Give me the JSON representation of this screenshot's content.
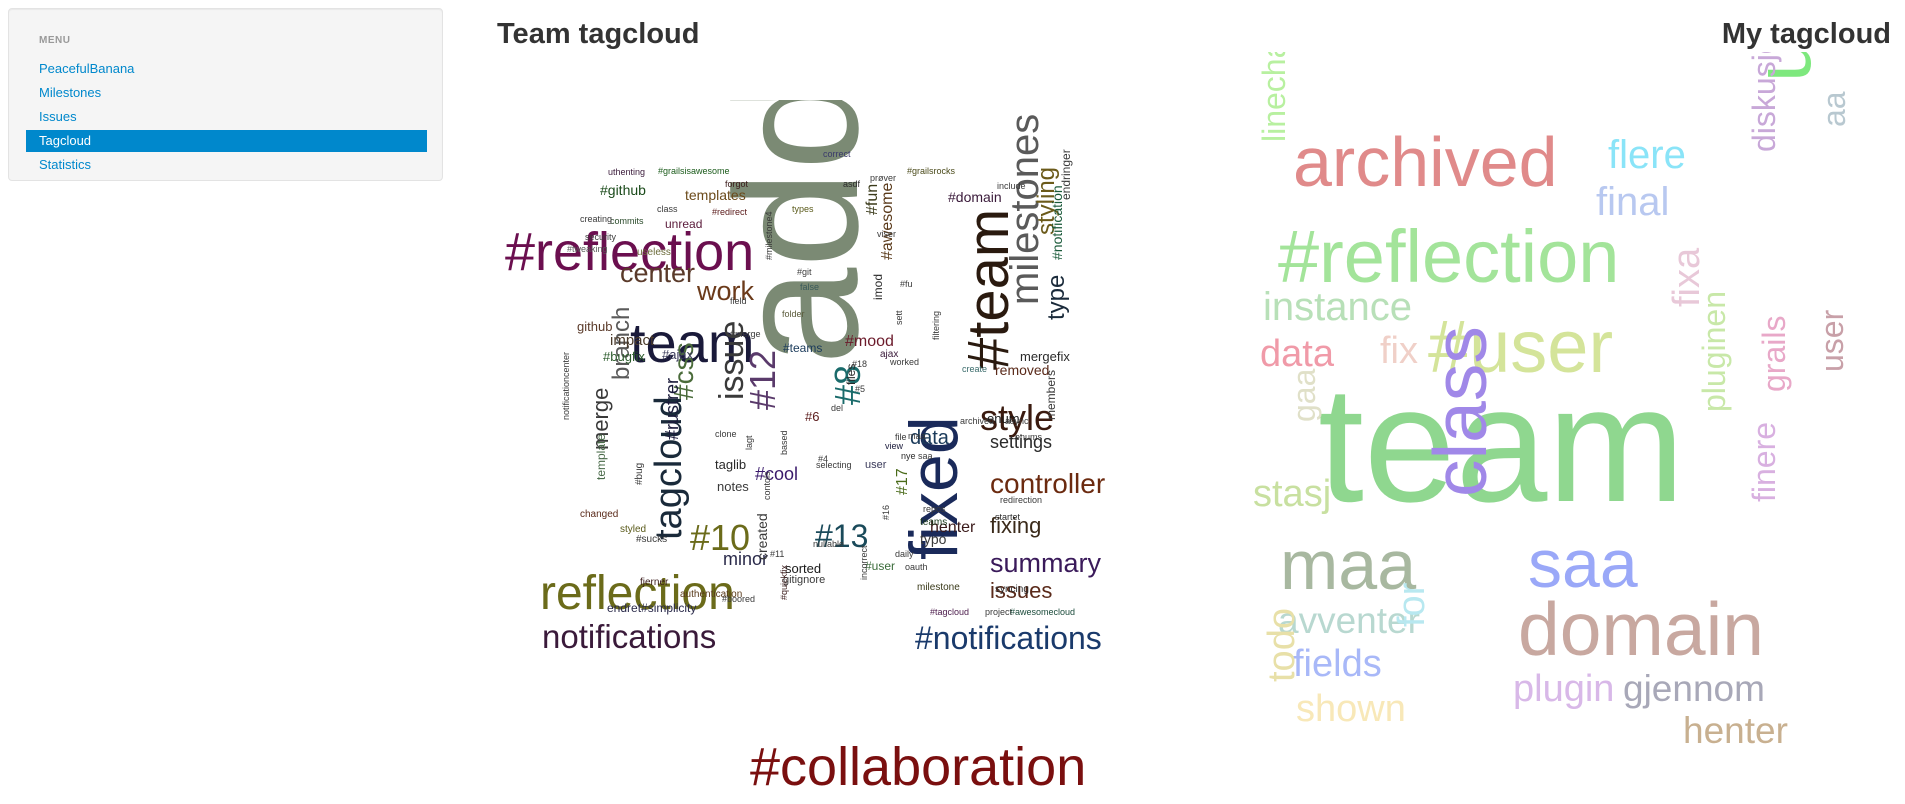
{
  "menu": {
    "header": "MENU",
    "items": [
      {
        "label": "PeacefulBanana",
        "active": false
      },
      {
        "label": "Milestones",
        "active": false
      },
      {
        "label": "Issues",
        "active": false
      },
      {
        "label": "Tagcloud",
        "active": true
      },
      {
        "label": "Statistics",
        "active": false
      }
    ]
  },
  "team_cloud": {
    "title": "Team tagcloud",
    "words": [
      {
        "text": "added",
        "color": "#7b8a74",
        "rotate": true
      },
      {
        "text": "#reflection",
        "color": "#6b0f4f",
        "rotate": false
      },
      {
        "text": "#collaboration",
        "color": "#7a0f0f",
        "rotate": false
      },
      {
        "text": "fixed",
        "color": "#1a2a5a",
        "rotate": true
      },
      {
        "text": "#team",
        "color": "#2a1a0f",
        "rotate": true
      },
      {
        "text": "team",
        "color": "#1a1a3a",
        "rotate": false
      },
      {
        "text": "reflection",
        "color": "#6b6b1a",
        "rotate": false
      },
      {
        "text": "notifications",
        "color": "#3a1a3a",
        "rotate": false
      },
      {
        "text": "#notifications",
        "color": "#1a3a6b",
        "rotate": false
      },
      {
        "text": "milestones",
        "color": "#5a5a5a",
        "rotate": true
      },
      {
        "text": "tagcloud",
        "color": "#1a2a3a",
        "rotate": true
      },
      {
        "text": "style",
        "color": "#3a1a0f",
        "rotate": false
      },
      {
        "text": "controller",
        "color": "#6b2a0f",
        "rotate": false
      },
      {
        "text": "summary",
        "color": "#3a1a5a",
        "rotate": false
      },
      {
        "text": "center",
        "color": "#5a3a2a",
        "rotate": false
      },
      {
        "text": "work",
        "color": "#6b3a1a",
        "rotate": false
      },
      {
        "text": "issue",
        "color": "#3a3a3a",
        "rotate": true
      },
      {
        "text": "#12",
        "color": "#5a3a6b",
        "rotate": true
      },
      {
        "text": "#10",
        "color": "#6b6b1a",
        "rotate": false
      },
      {
        "text": "#13",
        "color": "#1a4a5a",
        "rotate": false
      },
      {
        "text": "#8",
        "color": "#1a6b6b",
        "rotate": true
      },
      {
        "text": "#css",
        "color": "#4a6b3a",
        "rotate": true
      },
      {
        "text": "branch",
        "color": "#5a5a5a",
        "rotate": true
      },
      {
        "text": "merge",
        "color": "#3a3a3a",
        "rotate": true
      },
      {
        "text": "type",
        "color": "#1a2a3a",
        "rotate": true
      },
      {
        "text": "styling",
        "color": "#6b5a1a",
        "rotate": true
      },
      {
        "text": "settings",
        "color": "#2a2a2a",
        "rotate": false
      },
      {
        "text": "fixing",
        "color": "#3a2a1a",
        "rotate": false
      },
      {
        "text": "issues",
        "color": "#5a2a1a",
        "rotate": false
      },
      {
        "text": "data",
        "color": "#1a3a5a",
        "rotate": false
      },
      {
        "text": "minor",
        "color": "#2a2a4a",
        "rotate": false
      },
      {
        "text": "#cool",
        "color": "#3a1a6b",
        "rotate": false
      },
      {
        "text": "#rustrer",
        "color": "#1a1a3a",
        "rotate": true
      },
      {
        "text": "#mood",
        "color": "#6b1a2a",
        "rotate": false
      },
      {
        "text": "#fun",
        "color": "#3a3a1a",
        "rotate": true
      },
      {
        "text": "#awesome",
        "color": "#5a3a1a",
        "rotate": true
      },
      {
        "text": "#17",
        "color": "#4a6b1a",
        "rotate": true
      },
      {
        "text": "#github",
        "color": "#1a4a1a",
        "rotate": false
      },
      {
        "text": "templates",
        "color": "#6b4a1a",
        "rotate": false
      },
      {
        "text": "#domain",
        "color": "#3a1a3a",
        "rotate": false
      },
      {
        "text": "#notification",
        "color": "#1a5a3a",
        "rotate": true
      },
      {
        "text": "endringer",
        "color": "#3a3a3a",
        "rotate": true
      },
      {
        "text": "mergefix",
        "color": "#2a2a2a",
        "rotate": false
      },
      {
        "text": "removed",
        "color": "#5a2a1a",
        "rotate": false
      },
      {
        "text": "enum",
        "color": "#1a1a1a",
        "rotate": false
      },
      {
        "text": "members",
        "color": "#3a3a3a",
        "rotate": true
      },
      {
        "text": "impact",
        "color": "#4a3a2a",
        "rotate": false
      },
      {
        "text": "github",
        "color": "#5a3a2a",
        "rotate": false
      },
      {
        "text": "#bugfix",
        "color": "#2a5a2a",
        "rotate": false
      },
      {
        "text": "#ajax",
        "color": "#3a3a5a",
        "rotate": false
      },
      {
        "text": "#teams",
        "color": "#1a3a5a",
        "rotate": false
      },
      {
        "text": "unread",
        "color": "#5a1a3a",
        "rotate": false
      },
      {
        "text": "useless",
        "color": "#6b6b3a",
        "rotate": false
      },
      {
        "text": "security",
        "color": "#3a3a3a",
        "rotate": false
      },
      {
        "text": "#tweaking",
        "color": "#5a5a5a",
        "rotate": false
      },
      {
        "text": "commits",
        "color": "#2a4a2a",
        "rotate": false
      },
      {
        "text": "class",
        "color": "#3a3a3a",
        "rotate": false
      },
      {
        "text": "#redirect",
        "color": "#5a1a1a",
        "rotate": false
      },
      {
        "text": "forgot",
        "color": "#3a1a1a",
        "rotate": false
      },
      {
        "text": "asdf",
        "color": "#2a2a2a",
        "rotate": false
      },
      {
        "text": "prøver",
        "color": "#3a3a3a",
        "rotate": false
      },
      {
        "text": "include",
        "color": "#3a3a3a",
        "rotate": false
      },
      {
        "text": "correct",
        "color": "#3a3a6b",
        "rotate": false
      },
      {
        "text": "#grailsrocks",
        "color": "#4a4a1a",
        "rotate": false
      },
      {
        "text": "#grailsisawesome",
        "color": "#1a5a1a",
        "rotate": false
      },
      {
        "text": "uthenting",
        "color": "#3a1a3a",
        "rotate": false
      },
      {
        "text": "notes",
        "color": "#3a3a3a",
        "rotate": false
      },
      {
        "text": "template",
        "color": "#4a6b4a",
        "rotate": true
      },
      {
        "text": "taglib",
        "color": "#2a2a2a",
        "rotate": false
      },
      {
        "text": "changed",
        "color": "#5a2a1a",
        "rotate": false
      },
      {
        "text": "styled",
        "color": "#5a5a1a",
        "rotate": false
      },
      {
        "text": "#sucks",
        "color": "#3a3a3a",
        "rotate": false
      },
      {
        "text": "#bug",
        "color": "#3a3a3a",
        "rotate": true
      },
      {
        "text": "sorted",
        "color": "#1a1a1a",
        "rotate": false
      },
      {
        "text": "gitignore",
        "color": "#3a3a3a",
        "rotate": false
      },
      {
        "text": "#user",
        "color": "#3a6b3a",
        "rotate": false
      },
      {
        "text": "milestone",
        "color": "#3a3a1a",
        "rotate": false
      },
      {
        "text": "syncing",
        "color": "#2a2a2a",
        "rotate": false
      },
      {
        "text": "created",
        "color": "#3a3a3a",
        "rotate": true
      },
      {
        "text": "fjerner",
        "color": "#3a1a1a",
        "rotate": false
      },
      {
        "text": "authentication",
        "color": "#5a3a1a",
        "rotate": false
      },
      {
        "text": "endret#simplicity",
        "color": "#2a2a4a",
        "rotate": false
      },
      {
        "text": "#tagcloud",
        "color": "#4a1a4a",
        "rotate": false
      },
      {
        "text": "project",
        "color": "#3a3a3a",
        "rotate": false
      },
      {
        "text": "#awesomecloud",
        "color": "#1a4a3a",
        "rotate": false
      },
      {
        "text": "henter",
        "color": "#3a1a1a",
        "rotate": false
      },
      {
        "text": "typo",
        "color": "#3a3a3a",
        "rotate": false
      },
      {
        "text": "teams",
        "color": "#1a3a1a",
        "rotate": false
      },
      {
        "text": "repos",
        "color": "#3a3a3a",
        "rotate": false
      },
      {
        "text": "startet",
        "color": "#2a2a2a",
        "rotate": false
      },
      {
        "text": "redirection",
        "color": "#3a3a3a",
        "rotate": false
      },
      {
        "text": "async",
        "color": "#3a3a3a",
        "rotate": false
      },
      {
        "text": "archived",
        "color": "#3a3a3a",
        "rotate": false
      },
      {
        "text": "view",
        "color": "#1a1a3a",
        "rotate": false
      },
      {
        "text": "maa",
        "color": "#3a3a3a",
        "rotate": false
      },
      {
        "text": "saa",
        "color": "#3a3a3a",
        "rotate": false
      },
      {
        "text": "nye",
        "color": "#2a2a2a",
        "rotate": false
      },
      {
        "text": "selecting",
        "color": "#3a3a3a",
        "rotate": false
      },
      {
        "text": "user",
        "color": "#3a3a5a",
        "rotate": false
      },
      {
        "text": "files",
        "color": "#2a2a2a",
        "rotate": true
      },
      {
        "text": "del",
        "color": "#3a3a3a",
        "rotate": false
      },
      {
        "text": "#6",
        "color": "#5a1a1a",
        "rotate": false
      },
      {
        "text": "ajax",
        "color": "#3a1a3a",
        "rotate": false
      },
      {
        "text": "create",
        "color": "#3a6b6b",
        "rotate": false
      },
      {
        "text": "worked",
        "color": "#3a3a3a",
        "rotate": false
      },
      {
        "text": "imod",
        "color": "#2a2a2a",
        "rotate": true
      },
      {
        "text": "false",
        "color": "#3a5a5a",
        "rotate": false
      },
      {
        "text": "folder",
        "color": "#5a5a3a",
        "rotate": false
      },
      {
        "text": "#milestone4",
        "color": "#3a3a3a",
        "rotate": true
      },
      {
        "text": "#git",
        "color": "#3a3a3a",
        "rotate": false
      },
      {
        "text": "nullable",
        "color": "#3a3a3a",
        "rotate": false
      },
      {
        "text": "incorrect",
        "color": "#3a3a3a",
        "rotate": true
      },
      {
        "text": "oauth",
        "color": "#3a3a3a",
        "rotate": false
      },
      {
        "text": "daily",
        "color": "#3a3a3a",
        "rotate": false
      },
      {
        "text": "#boored",
        "color": "#3a3a3a",
        "rotate": false
      },
      {
        "text": "#quickfix",
        "color": "#3a1a1a",
        "rotate": true
      },
      {
        "text": "#11",
        "color": "#3a3a3a",
        "rotate": false
      },
      {
        "text": "#16",
        "color": "#3a3a3a",
        "rotate": true
      },
      {
        "text": "#18",
        "color": "#3a3a3a",
        "rotate": false
      },
      {
        "text": "#5",
        "color": "#3a3a3a",
        "rotate": false
      },
      {
        "text": "#4",
        "color": "#3a3a3a",
        "rotate": false
      },
      {
        "text": "enums",
        "color": "#3a3a3a",
        "rotate": false
      },
      {
        "text": "types",
        "color": "#5a5a1a",
        "rotate": false
      },
      {
        "text": "viser",
        "color": "#3a3a3a",
        "rotate": false
      },
      {
        "text": "field",
        "color": "#3a3a3a",
        "rotate": false
      },
      {
        "text": "creating",
        "color": "#3a3a3a",
        "rotate": false
      },
      {
        "text": "contols",
        "color": "#3a3a3a",
        "rotate": true
      },
      {
        "text": "notificationcenter",
        "color": "#3a3a3a",
        "rotate": true
      },
      {
        "text": "#merge",
        "color": "#3a3a3a",
        "rotate": false
      },
      {
        "text": "filtering",
        "color": "#3a3a3a",
        "rotate": true
      },
      {
        "text": "sett",
        "color": "#3a3a3a",
        "rotate": true
      },
      {
        "text": "#fu",
        "color": "#3a3a3a",
        "rotate": false
      },
      {
        "text": "lagt",
        "color": "#3a3a3a",
        "rotate": true
      },
      {
        "text": "file",
        "color": "#3a3a3a",
        "rotate": false
      },
      {
        "text": "based",
        "color": "#3a3a3a",
        "rotate": true
      },
      {
        "text": "clone",
        "color": "#3a3a3a",
        "rotate": false
      }
    ]
  },
  "my_cloud": {
    "title": "My tagcloud",
    "words": [
      {
        "text": "team",
        "color": "#8fd78f",
        "rotate": false
      },
      {
        "text": "archived",
        "color": "#e08a8a",
        "rotate": false
      },
      {
        "text": "#reflection",
        "color": "#a3e49a",
        "rotate": false
      },
      {
        "text": "unread",
        "color": "#7ee87e",
        "rotate": true
      },
      {
        "text": "#user",
        "color": "#d4e49a",
        "rotate": false
      },
      {
        "text": "domain",
        "color": "#c8a8a0",
        "rotate": false
      },
      {
        "text": "class",
        "color": "#a088e8",
        "rotate": true
      },
      {
        "text": "maa",
        "color": "#a8b8a0",
        "rotate": false
      },
      {
        "text": "saa",
        "color": "#9aa8f8",
        "rotate": false
      },
      {
        "text": "instance",
        "color": "#b8e0b8",
        "rotate": false
      },
      {
        "text": "flere",
        "color": "#8ae4f8",
        "rotate": false
      },
      {
        "text": "final",
        "color": "#b8c8f0",
        "rotate": false
      },
      {
        "text": "data",
        "color": "#f09aa8",
        "rotate": false
      },
      {
        "text": "fix",
        "color": "#f0d0c8",
        "rotate": false
      },
      {
        "text": "fixa",
        "color": "#e8c8d8",
        "rotate": true
      },
      {
        "text": "linechart",
        "color": "#b8f0a0",
        "rotate": true
      },
      {
        "text": "diskusjon",
        "color": "#c8a8d8",
        "rotate": true
      },
      {
        "text": "aa",
        "color": "#b8c8d0",
        "rotate": true
      },
      {
        "text": "user",
        "color": "#c8a0a8",
        "rotate": true
      },
      {
        "text": "grails",
        "color": "#e8a8c8",
        "rotate": true
      },
      {
        "text": "pluginen",
        "color": "#c8e8a8",
        "rotate": true
      },
      {
        "text": "finere",
        "color": "#d8b0e0",
        "rotate": true
      },
      {
        "text": "gaa",
        "color": "#e0e0c8",
        "rotate": true
      },
      {
        "text": "stasj",
        "color": "#c8e0a0",
        "rotate": false
      },
      {
        "text": "avventer",
        "color": "#b8d8d0",
        "rotate": false
      },
      {
        "text": "fields",
        "color": "#a8b8f8",
        "rotate": false
      },
      {
        "text": "for",
        "color": "#b8e8f0",
        "rotate": true
      },
      {
        "text": "plugin",
        "color": "#d8b8e8",
        "rotate": false
      },
      {
        "text": "gjennom",
        "color": "#a8a8b8",
        "rotate": false
      },
      {
        "text": "shown",
        "color": "#f8e8b8",
        "rotate": false
      },
      {
        "text": "todo",
        "color": "#e8e0a8",
        "rotate": true
      },
      {
        "text": "henter",
        "color": "#c8b090",
        "rotate": false
      }
    ]
  }
}
